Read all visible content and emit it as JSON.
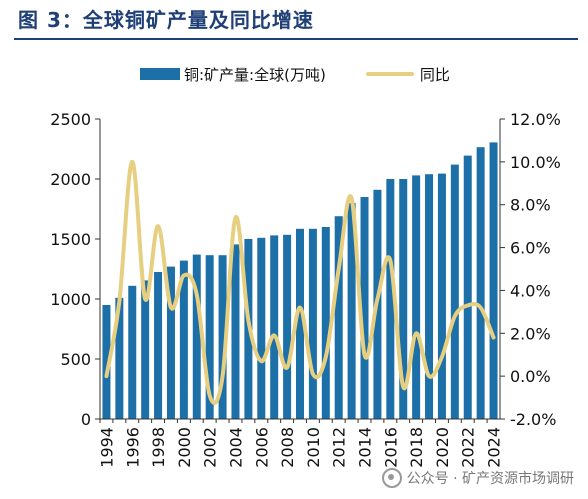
{
  "figure_title": "图 3：全球铜矿产量及同比增速",
  "watermark": "公众号 · 矿产资源市场调研",
  "colors": {
    "bar": "#1d6fa8",
    "line": "#e6cf80",
    "title": "#1f3f77",
    "axis": "#333333"
  },
  "chart_data": {
    "type": "bar+line",
    "legend_position": "top",
    "grid": false,
    "categories": [
      "1994",
      "1995",
      "1996",
      "1997",
      "1998",
      "1999",
      "2000",
      "2001",
      "2002",
      "2003",
      "2004",
      "2005",
      "2006",
      "2007",
      "2008",
      "2009",
      "2010",
      "2011",
      "2012",
      "2013",
      "2014",
      "2015",
      "2016",
      "2017",
      "2018",
      "2019",
      "2020",
      "2021",
      "2022",
      "2023",
      "2024"
    ],
    "x_tick_labels": [
      "1994",
      "1996",
      "1998",
      "2000",
      "2002",
      "2004",
      "2006",
      "2008",
      "2010",
      "2012",
      "2014",
      "2016",
      "2018",
      "2020",
      "2022",
      "2024"
    ],
    "series": [
      {
        "name": "铜:矿产量:全球(万吨)",
        "type": "bar",
        "axis": "left",
        "values": [
          950,
          1010,
          1110,
          1155,
          1225,
          1270,
          1320,
          1370,
          1365,
          1365,
          1455,
          1500,
          1510,
          1530,
          1535,
          1585,
          1585,
          1600,
          1690,
          1800,
          1850,
          1910,
          2000,
          2000,
          2030,
          2040,
          2045,
          2120,
          2195,
          2265,
          2305
        ]
      },
      {
        "name": "同比",
        "type": "line",
        "axis": "right",
        "values": [
          0.0,
          3.5,
          10.0,
          3.6,
          7.0,
          3.2,
          4.7,
          3.8,
          -0.9,
          0.0,
          7.4,
          2.6,
          0.7,
          1.9,
          0.4,
          3.2,
          0.1,
          0.9,
          5.0,
          8.3,
          1.0,
          3.6,
          5.4,
          -0.5,
          2.0,
          0.0,
          0.9,
          2.8,
          3.3,
          3.2,
          1.8
        ]
      }
    ],
    "left_axis": {
      "min": 0,
      "max": 2500,
      "ticks": [
        0,
        500,
        1000,
        1500,
        2000,
        2500
      ]
    },
    "right_axis": {
      "min": -2.0,
      "max": 12.0,
      "ticks": [
        -2.0,
        0.0,
        2.0,
        4.0,
        6.0,
        8.0,
        10.0,
        12.0
      ],
      "tick_labels": [
        "-2.0%",
        "0.0%",
        "2.0%",
        "4.0%",
        "6.0%",
        "8.0%",
        "10.0%",
        "12.0%"
      ]
    }
  }
}
